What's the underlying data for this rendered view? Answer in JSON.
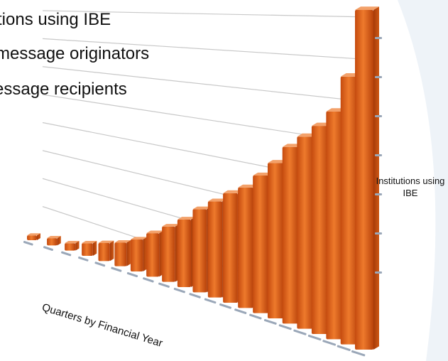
{
  "slide": {
    "bullets": [
      "tions using IBE",
      "message originators",
      "essage recipients"
    ]
  },
  "colors": {
    "bar_front": "#e8661c",
    "bar_top": "#f3a16a",
    "gridline": "#c8c8c8",
    "corner_accent": "#e6eef6"
  },
  "chart_data": {
    "type": "bar",
    "ylabel": "Institutions using IBE",
    "xlabel": "Quarters by Financial Year",
    "ylim": [
      0,
      100
    ],
    "grid": true,
    "values": [
      2,
      3,
      3,
      5,
      7,
      9,
      12,
      16,
      20,
      24,
      29,
      33,
      37,
      40,
      45,
      50,
      56,
      60,
      64,
      69,
      80,
      100
    ]
  }
}
